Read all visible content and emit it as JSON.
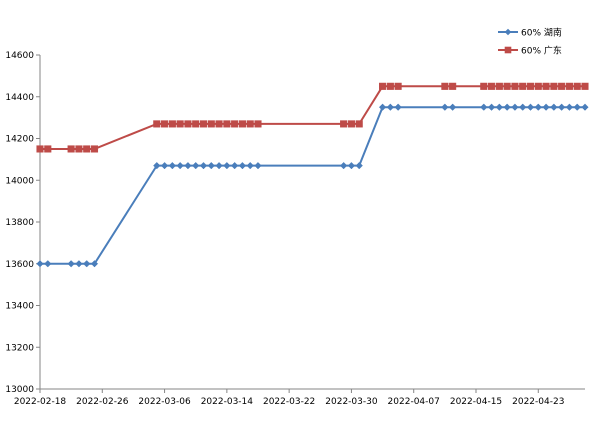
{
  "chart_data": {
    "type": "line",
    "x_tick_labels": [
      "2022-02-18",
      "2022-02-26",
      "2022-03-06",
      "2022-03-14",
      "2022-03-22",
      "2022-03-30",
      "2022-04-07",
      "2022-04-15",
      "2022-04-23"
    ],
    "x_range": [
      "2022-02-18",
      "2022-04-29"
    ],
    "ylim": [
      13000,
      14600
    ],
    "y_ticks": [
      13000,
      13200,
      13400,
      13600,
      13800,
      14000,
      14200,
      14400,
      14600
    ],
    "grid": "none",
    "legend_position": "top-right",
    "series": [
      {
        "name": "60% 湖南",
        "color": "#4a7ebb",
        "marker": "diamond",
        "points": [
          [
            "2022-02-18",
            13600
          ],
          [
            "2022-02-19",
            13600
          ],
          [
            "2022-02-22",
            13600
          ],
          [
            "2022-02-23",
            13600
          ],
          [
            "2022-02-24",
            13600
          ],
          [
            "2022-02-25",
            13600
          ],
          [
            "2022-03-05",
            14070
          ],
          [
            "2022-03-06",
            14070
          ],
          [
            "2022-03-07",
            14070
          ],
          [
            "2022-03-08",
            14070
          ],
          [
            "2022-03-09",
            14070
          ],
          [
            "2022-03-10",
            14070
          ],
          [
            "2022-03-11",
            14070
          ],
          [
            "2022-03-12",
            14070
          ],
          [
            "2022-03-13",
            14070
          ],
          [
            "2022-03-14",
            14070
          ],
          [
            "2022-03-15",
            14070
          ],
          [
            "2022-03-16",
            14070
          ],
          [
            "2022-03-17",
            14070
          ],
          [
            "2022-03-18",
            14070
          ],
          [
            "2022-03-29",
            14070
          ],
          [
            "2022-03-30",
            14070
          ],
          [
            "2022-03-31",
            14070
          ],
          [
            "2022-04-03",
            14350
          ],
          [
            "2022-04-04",
            14350
          ],
          [
            "2022-04-05",
            14350
          ],
          [
            "2022-04-11",
            14350
          ],
          [
            "2022-04-12",
            14350
          ],
          [
            "2022-04-16",
            14350
          ],
          [
            "2022-04-17",
            14350
          ],
          [
            "2022-04-18",
            14350
          ],
          [
            "2022-04-19",
            14350
          ],
          [
            "2022-04-20",
            14350
          ],
          [
            "2022-04-21",
            14350
          ],
          [
            "2022-04-22",
            14350
          ],
          [
            "2022-04-23",
            14350
          ],
          [
            "2022-04-24",
            14350
          ],
          [
            "2022-04-25",
            14350
          ],
          [
            "2022-04-26",
            14350
          ],
          [
            "2022-04-27",
            14350
          ],
          [
            "2022-04-28",
            14350
          ],
          [
            "2022-04-29",
            14350
          ]
        ]
      },
      {
        "name": "60% 广东",
        "color": "#be4b48",
        "marker": "square",
        "points": [
          [
            "2022-02-18",
            14150
          ],
          [
            "2022-02-19",
            14150
          ],
          [
            "2022-02-22",
            14150
          ],
          [
            "2022-02-23",
            14150
          ],
          [
            "2022-02-24",
            14150
          ],
          [
            "2022-02-25",
            14150
          ],
          [
            "2022-03-05",
            14270
          ],
          [
            "2022-03-06",
            14270
          ],
          [
            "2022-03-07",
            14270
          ],
          [
            "2022-03-08",
            14270
          ],
          [
            "2022-03-09",
            14270
          ],
          [
            "2022-03-10",
            14270
          ],
          [
            "2022-03-11",
            14270
          ],
          [
            "2022-03-12",
            14270
          ],
          [
            "2022-03-13",
            14270
          ],
          [
            "2022-03-14",
            14270
          ],
          [
            "2022-03-15",
            14270
          ],
          [
            "2022-03-16",
            14270
          ],
          [
            "2022-03-17",
            14270
          ],
          [
            "2022-03-18",
            14270
          ],
          [
            "2022-03-29",
            14270
          ],
          [
            "2022-03-30",
            14270
          ],
          [
            "2022-03-31",
            14270
          ],
          [
            "2022-04-03",
            14450
          ],
          [
            "2022-04-04",
            14450
          ],
          [
            "2022-04-05",
            14450
          ],
          [
            "2022-04-11",
            14450
          ],
          [
            "2022-04-12",
            14450
          ],
          [
            "2022-04-16",
            14450
          ],
          [
            "2022-04-17",
            14450
          ],
          [
            "2022-04-18",
            14450
          ],
          [
            "2022-04-19",
            14450
          ],
          [
            "2022-04-20",
            14450
          ],
          [
            "2022-04-21",
            14450
          ],
          [
            "2022-04-22",
            14450
          ],
          [
            "2022-04-23",
            14450
          ],
          [
            "2022-04-24",
            14450
          ],
          [
            "2022-04-25",
            14450
          ],
          [
            "2022-04-26",
            14450
          ],
          [
            "2022-04-27",
            14450
          ],
          [
            "2022-04-28",
            14450
          ],
          [
            "2022-04-29",
            14450
          ]
        ]
      }
    ]
  }
}
